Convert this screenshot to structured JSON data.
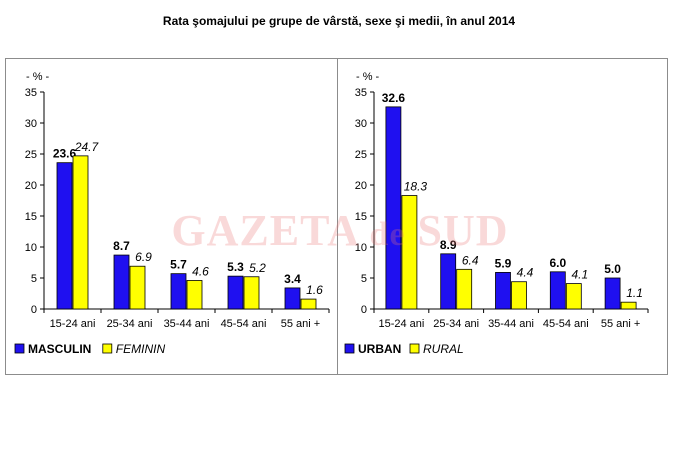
{
  "title": "Rata şomajului pe grupe de vârstă, sexe şi medii, în anul 2014",
  "watermark": {
    "main": "GAZETA",
    "de": "de",
    "end": "SUD"
  },
  "colors": {
    "blue": "#1f10f0",
    "yellow": "#ffff00"
  },
  "chart_data": [
    {
      "type": "bar",
      "unit_label": "- % -",
      "categories": [
        "15-24 ani",
        "25-34 ani",
        "35-44 ani",
        "45-54 ani",
        "55 ani +"
      ],
      "ylim": [
        0,
        35
      ],
      "yticks": [
        0,
        5,
        10,
        15,
        20,
        25,
        30,
        35
      ],
      "legend_position": "bottom-left",
      "series": [
        {
          "name": "MASCULIN",
          "values": [
            23.6,
            8.7,
            5.7,
            5.3,
            3.4
          ],
          "color": "#1f10f0"
        },
        {
          "name": "FEMININ",
          "values": [
            24.7,
            6.9,
            4.6,
            5.2,
            1.6
          ],
          "color": "#ffff00"
        }
      ]
    },
    {
      "type": "bar",
      "unit_label": "- % -",
      "categories": [
        "15-24 ani",
        "25-34 ani",
        "35-44 ani",
        "45-54 ani",
        "55 ani +"
      ],
      "ylim": [
        0,
        35
      ],
      "yticks": [
        0,
        5,
        10,
        15,
        20,
        25,
        30,
        35
      ],
      "legend_position": "bottom-left",
      "series": [
        {
          "name": "URBAN",
          "values": [
            32.6,
            8.9,
            5.9,
            6.0,
            5.0
          ],
          "color": "#1f10f0"
        },
        {
          "name": "RURAL",
          "values": [
            18.3,
            6.4,
            4.4,
            4.1,
            1.1
          ],
          "color": "#ffff00"
        }
      ]
    }
  ]
}
